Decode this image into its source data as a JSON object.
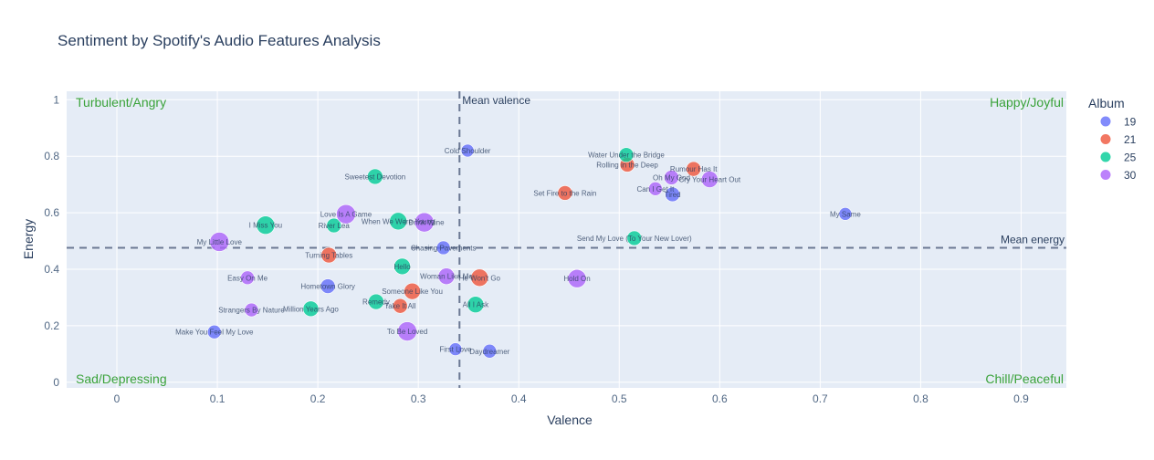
{
  "chart_data": {
    "type": "scatter",
    "title": "Sentiment by Spotify's Audio Features Analysis",
    "xlabel": "Valence",
    "ylabel": "Energy",
    "xlim": [
      -0.05,
      0.945
    ],
    "ylim": [
      -0.02,
      1.03
    ],
    "xticks": [
      0,
      0.1,
      0.2,
      0.3,
      0.4,
      0.5,
      0.6,
      0.7,
      0.8,
      0.9
    ],
    "xtick_labels": [
      "0",
      "0.1",
      "0.2",
      "0.3",
      "0.4",
      "0.5",
      "0.6",
      "0.7",
      "0.8",
      "0.9"
    ],
    "yticks": [
      0,
      0.2,
      0.4,
      0.6,
      0.8,
      1
    ],
    "ytick_labels": [
      "0",
      "0.2",
      "0.4",
      "0.6",
      "0.8",
      "1"
    ],
    "grid": true,
    "legend": {
      "title": "Album",
      "position": "top-right"
    },
    "mean_valence": {
      "value": 0.341,
      "label": "Mean valence"
    },
    "mean_energy": {
      "value": 0.476,
      "label": "Mean energy"
    },
    "quadrants": {
      "top_left": "Turbulent/Angry",
      "top_right": "Happy/Joyful",
      "bottom_left": "Sad/Depressing",
      "bottom_right": "Chill/Peaceful"
    },
    "series": [
      {
        "name": "19",
        "color": "#636efa",
        "points": [
          {
            "label": "Cold Shoulder",
            "x": 0.349,
            "y": 0.82,
            "size": 14
          },
          {
            "label": "Tired",
            "x": 0.553,
            "y": 0.665,
            "size": 16
          },
          {
            "label": "My Same",
            "x": 0.725,
            "y": 0.596,
            "size": 14
          },
          {
            "label": "Chasing Pavements",
            "x": 0.325,
            "y": 0.476,
            "size": 15
          },
          {
            "label": "Hometown Glory",
            "x": 0.21,
            "y": 0.34,
            "size": 16
          },
          {
            "label": "Make You Feel My Love",
            "x": 0.097,
            "y": 0.178,
            "size": 15
          },
          {
            "label": "First Love",
            "x": 0.337,
            "y": 0.117,
            "size": 14
          },
          {
            "label": "Daydreamer",
            "x": 0.371,
            "y": 0.11,
            "size": 15
          }
        ]
      },
      {
        "name": "21",
        "color": "#ef553b",
        "points": [
          {
            "label": "Rolling in the Deep",
            "x": 0.508,
            "y": 0.77,
            "size": 16
          },
          {
            "label": "Rumour Has It",
            "x": 0.574,
            "y": 0.755,
            "size": 16
          },
          {
            "label": "Set Fire to the Rain",
            "x": 0.446,
            "y": 0.67,
            "size": 16
          },
          {
            "label": "Turning Tables",
            "x": 0.211,
            "y": 0.45,
            "size": 17
          },
          {
            "label": "He Won't Go",
            "x": 0.361,
            "y": 0.37,
            "size": 19
          },
          {
            "label": "Someone Like You",
            "x": 0.294,
            "y": 0.322,
            "size": 18
          },
          {
            "label": "Take It All",
            "x": 0.282,
            "y": 0.27,
            "size": 16
          }
        ]
      },
      {
        "name": "25",
        "color": "#00cc96",
        "points": [
          {
            "label": "Water Under the Bridge",
            "x": 0.507,
            "y": 0.805,
            "size": 16
          },
          {
            "label": "Sweetest Devotion",
            "x": 0.257,
            "y": 0.728,
            "size": 17
          },
          {
            "label": "When We Were Young",
            "x": 0.28,
            "y": 0.57,
            "size": 19
          },
          {
            "label": "River Lea",
            "x": 0.216,
            "y": 0.555,
            "size": 16
          },
          {
            "label": "I Miss You",
            "x": 0.148,
            "y": 0.556,
            "size": 20
          },
          {
            "label": "Send My Love (To Your New Lover)",
            "x": 0.515,
            "y": 0.51,
            "size": 16
          },
          {
            "label": "Hello",
            "x": 0.284,
            "y": 0.41,
            "size": 18
          },
          {
            "label": "Remedy",
            "x": 0.258,
            "y": 0.285,
            "size": 17
          },
          {
            "label": "All I Ask",
            "x": 0.357,
            "y": 0.275,
            "size": 18
          },
          {
            "label": "Million Years Ago",
            "x": 0.193,
            "y": 0.26,
            "size": 17
          }
        ]
      },
      {
        "name": "30",
        "color": "#ab63fa",
        "points": [
          {
            "label": "Oh My God",
            "x": 0.552,
            "y": 0.725,
            "size": 16
          },
          {
            "label": "Cry Your Heart Out",
            "x": 0.59,
            "y": 0.718,
            "size": 18
          },
          {
            "label": "Can I Get It",
            "x": 0.536,
            "y": 0.685,
            "size": 15
          },
          {
            "label": "Love Is A Game",
            "x": 0.228,
            "y": 0.595,
            "size": 21
          },
          {
            "label": "I Drink Wine",
            "x": 0.306,
            "y": 0.566,
            "size": 21
          },
          {
            "label": "My Little Love",
            "x": 0.102,
            "y": 0.497,
            "size": 21
          },
          {
            "label": "Woman Like Me",
            "x": 0.328,
            "y": 0.375,
            "size": 18
          },
          {
            "label": "Hold On",
            "x": 0.458,
            "y": 0.367,
            "size": 20
          },
          {
            "label": "Easy On Me",
            "x": 0.13,
            "y": 0.37,
            "size": 15
          },
          {
            "label": "Strangers By Nature",
            "x": 0.134,
            "y": 0.256,
            "size": 15
          },
          {
            "label": "To Be Loved",
            "x": 0.289,
            "y": 0.18,
            "size": 21
          }
        ]
      }
    ]
  }
}
